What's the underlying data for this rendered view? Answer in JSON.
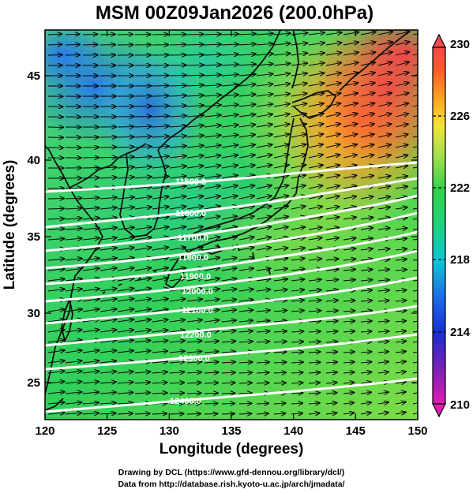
{
  "title": "MSM 00Z09Jan2026 (200.0hPa)",
  "x_axis": {
    "label": "Longitude (degrees)",
    "ticks": [
      "120",
      "125",
      "130",
      "135",
      "140",
      "145",
      "150"
    ]
  },
  "y_axis": {
    "label": "Latitude  (degrees)",
    "ticks": [
      "25",
      "30",
      "35",
      "40",
      "45"
    ]
  },
  "colorbar": {
    "ticks": [
      "230",
      "226",
      "222",
      "218",
      "214",
      "210"
    ]
  },
  "credits": {
    "line1": "Drawing by DCL (https://www.gfd-dennou.org/library/dcl/)",
    "line2": "Data from http://database.rish.kyoto-u.ac.jp/arch/jmadata/"
  },
  "contour_labels": [
    "11500.0",
    "11600.0",
    "11700.0",
    "11800.0",
    "11900.0",
    "12000.0",
    "12100.0",
    "12200.0",
    "12300.0",
    "12400.0"
  ]
}
